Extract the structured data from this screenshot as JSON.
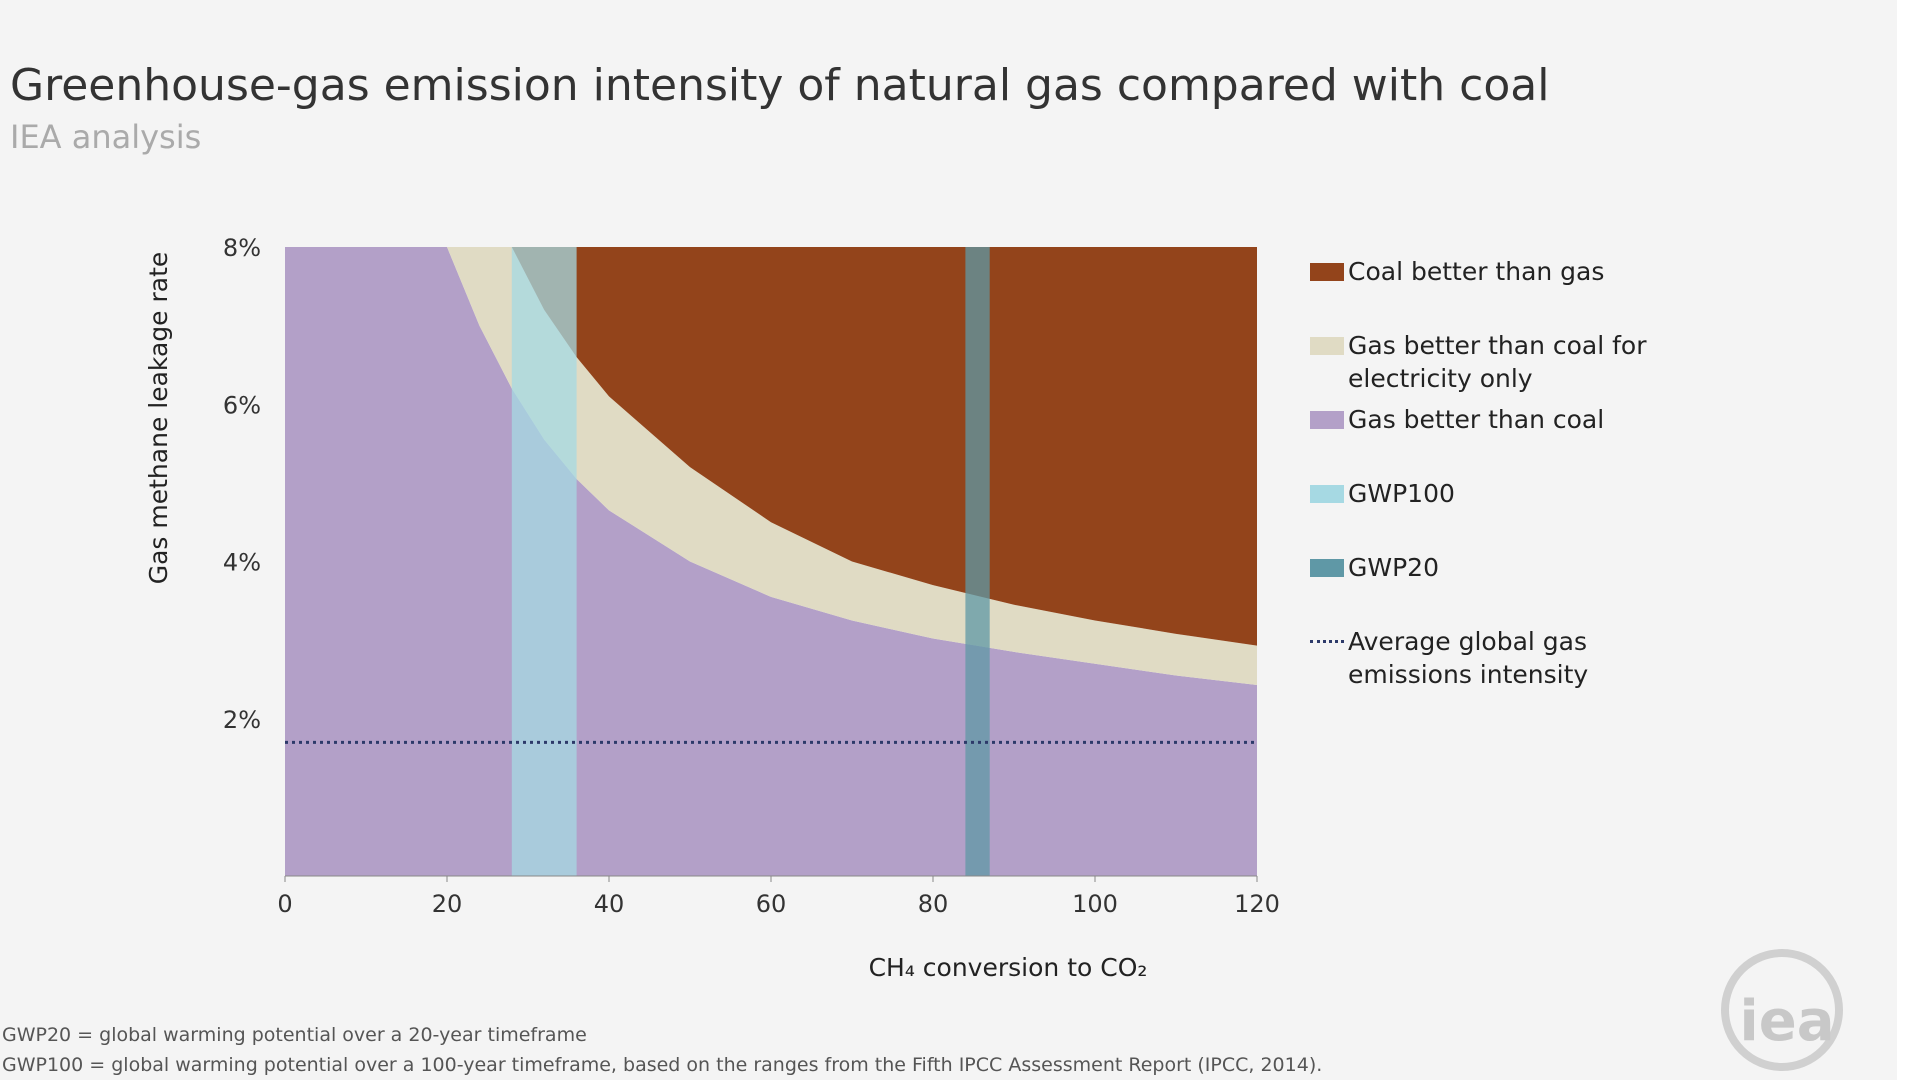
{
  "title": "Greenhouse-gas emission intensity of natural gas compared with coal",
  "subtitle": "IEA analysis",
  "chart_data": {
    "type": "area",
    "stacked": true,
    "x_label": "CH₄ conversion to CO₂",
    "y_label": "Gas methane leakage rate",
    "xlim": [
      0,
      120
    ],
    "xticks": [
      0,
      20,
      40,
      60,
      80,
      100,
      120
    ],
    "ylim": [
      0,
      8
    ],
    "yticks": [
      {
        "value": 2,
        "label": "2%"
      },
      {
        "value": 4,
        "label": "4%"
      },
      {
        "value": 6,
        "label": "6%"
      },
      {
        "value": 8,
        "label": "8%"
      }
    ],
    "x": [
      0,
      20,
      24,
      28,
      32,
      36,
      40,
      50,
      60,
      70,
      80,
      90,
      100,
      110,
      120
    ],
    "series": [
      {
        "name": "Gas better than coal",
        "color": "#b3a0c8",
        "values": [
          8,
          8,
          7.0,
          6.2,
          5.55,
          5.05,
          4.65,
          4.0,
          3.55,
          3.25,
          3.02,
          2.85,
          2.7,
          2.55,
          2.43
        ]
      },
      {
        "name": "Gas better than coal for electricity only",
        "color": "#e0dbc4",
        "values": [
          0,
          0,
          1.0,
          1.8,
          1.65,
          1.55,
          1.45,
          1.2,
          0.95,
          0.75,
          0.68,
          0.6,
          0.55,
          0.53,
          0.5
        ]
      },
      {
        "name": "Coal better than gas",
        "color": "#93441b",
        "values": [
          0,
          0,
          0,
          0,
          0.8,
          1.4,
          1.9,
          2.8,
          3.5,
          4.0,
          4.3,
          4.55,
          4.75,
          4.92,
          5.07
        ]
      }
    ],
    "bands": [
      {
        "name": "GWP100",
        "color": "#a6d9e3",
        "range": [
          28,
          36
        ]
      },
      {
        "name": "GWP20",
        "color": "#5f98a6",
        "range": [
          84,
          87
        ]
      }
    ],
    "reference_line": {
      "name": "Average global gas emissions intensity",
      "color": "#2d3a6a",
      "value": 1.7
    }
  },
  "footnotes": [
    "GWP20 = global warming potential over a 20-year timeframe",
    "GWP100 = global warming potential over a 100-year timeframe, based on the ranges from the Fifth IPCC Assessment Report (IPCC, 2014)."
  ],
  "logo": "iea"
}
